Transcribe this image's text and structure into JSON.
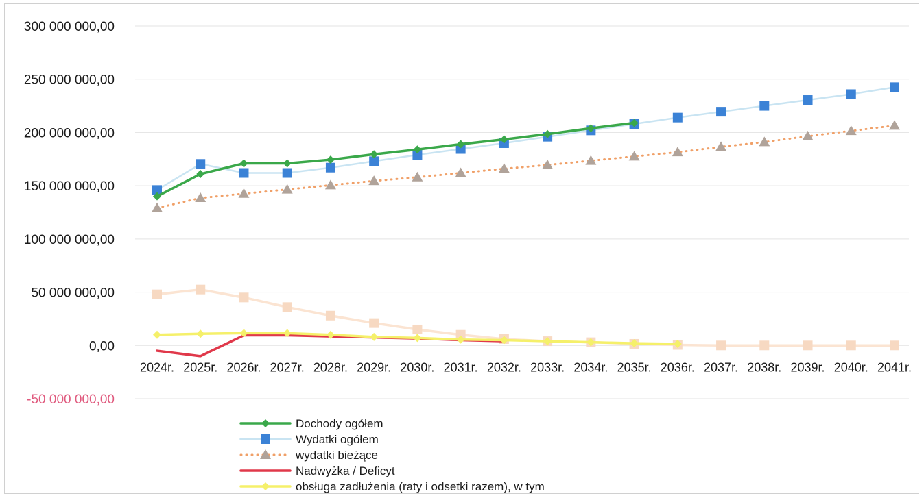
{
  "chart_data": {
    "type": "line",
    "categories": [
      "2024r.",
      "2025r.",
      "2026r.",
      "2027r.",
      "2028r.",
      "2029r.",
      "2030r.",
      "2031r.",
      "2032r.",
      "2033r.",
      "2034r.",
      "2035r.",
      "2036r.",
      "2037r.",
      "2038r.",
      "2039r.",
      "2040r.",
      "2041r."
    ],
    "ylim": [
      -50000000,
      300000000
    ],
    "yticks": [
      {
        "value": 300000000,
        "label": "300 000 000,00"
      },
      {
        "value": 250000000,
        "label": "250 000 000,00"
      },
      {
        "value": 200000000,
        "label": "200 000 000,00"
      },
      {
        "value": 150000000,
        "label": "150 000 000,00"
      },
      {
        "value": 100000000,
        "label": "100 000 000,00"
      },
      {
        "value": 50000000,
        "label": "50 000 000,00"
      },
      {
        "value": 0,
        "label": "0,00"
      },
      {
        "value": -50000000,
        "label": "-50 000 000,00",
        "color": "#e05a7e"
      }
    ],
    "legend_position": "bottom",
    "series": [
      {
        "name": "Dochody ogółem",
        "line_color": "#3aa84a",
        "marker": "diamond",
        "marker_color": "#3aa84a",
        "dash": "solid",
        "values": [
          140000000,
          161000000,
          171000000,
          171000000,
          174500000,
          179500000,
          184000000,
          189000000,
          193500000,
          198500000,
          204000000,
          209000000,
          null,
          null,
          null,
          null,
          null,
          null
        ]
      },
      {
        "name": "Wydatki ogółem",
        "line_color": "#c9e4f2",
        "marker": "square",
        "marker_color": "#3b82d6",
        "dash": "solid",
        "values": [
          146000000,
          170500000,
          162000000,
          162000000,
          167000000,
          173000000,
          179000000,
          184500000,
          190000000,
          196000000,
          202000000,
          208000000,
          214000000,
          219500000,
          225000000,
          230500000,
          236000000,
          242500000
        ]
      },
      {
        "name": "wydatki bieżące",
        "line_color": "#f0a068",
        "marker": "triangle",
        "marker_color": "#b0a39a",
        "dash": "dotted",
        "values": [
          129000000,
          138500000,
          142500000,
          146500000,
          150500000,
          154500000,
          158000000,
          162000000,
          166000000,
          169500000,
          173500000,
          177500000,
          181500000,
          186500000,
          191000000,
          196500000,
          201500000,
          206500000
        ]
      },
      {
        "name": "Nadwyżka / Deficyt",
        "line_color": "#e0384a",
        "marker": "none",
        "marker_color": "#e0384a",
        "dash": "solid",
        "values": [
          -5000000,
          -10000000,
          9500000,
          9500000,
          8500000,
          7500000,
          6500000,
          5000000,
          4000000,
          null,
          null,
          null,
          null,
          null,
          null,
          null,
          null,
          null
        ]
      },
      {
        "name": "obsługa zadłużenia (raty i odsetki razem), w tym",
        "line_color": "#f5f06a",
        "marker": "diamond",
        "marker_color": "#f5f06a",
        "dash": "solid",
        "values": [
          10000000,
          11000000,
          11500000,
          11500000,
          10000000,
          8000000,
          7000000,
          5500000,
          5000000,
          4000000,
          3000000,
          2000000,
          1500000,
          null,
          null,
          null,
          null,
          null
        ]
      },
      {
        "name": "",
        "line_color": "#fbe4d2",
        "marker": "square",
        "marker_color": "#f7d9c2",
        "dash": "solid",
        "unlabeled": true,
        "values": [
          48000000,
          52500000,
          45000000,
          36000000,
          28000000,
          21000000,
          15000000,
          10000000,
          6000000,
          4000000,
          3000000,
          1500000,
          500000,
          0,
          0,
          0,
          0,
          0
        ]
      }
    ]
  }
}
